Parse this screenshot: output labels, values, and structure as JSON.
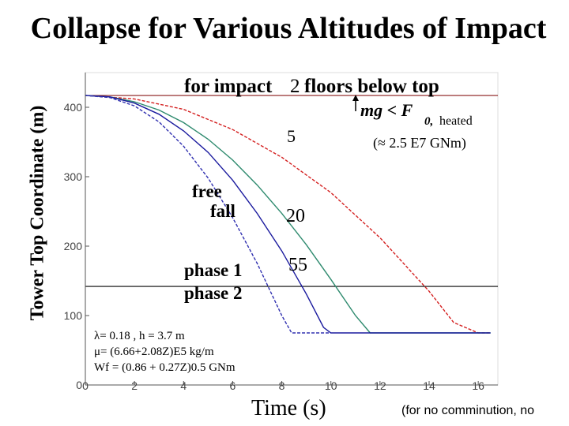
{
  "title": "Collapse for Various Altitudes of Impact",
  "chart_data": {
    "type": "line",
    "title": "Collapse for Various Altitudes of Impact",
    "xlabel": "Time (s)",
    "ylabel": "Tower Top Coordinate (m)",
    "xlim": [
      0,
      16.8
    ],
    "ylim": [
      0,
      450
    ],
    "xticks": [
      0,
      2,
      4,
      6,
      8,
      10,
      12,
      14,
      16
    ],
    "yticks": [
      0,
      100,
      200,
      300,
      400
    ],
    "grid": false,
    "series": [
      {
        "color": "#d42020",
        "style": "dashed",
        "x": [
          0,
          2,
          4,
          6,
          8,
          10,
          12,
          14,
          15,
          16,
          16.5
        ],
        "y": [
          417,
          412,
          397,
          368,
          328,
          277,
          212,
          135,
          90,
          75,
          75
        ]
      },
      {
        "color": "#2e8a6e",
        "style": "solid",
        "x": [
          0,
          1,
          2,
          3,
          4,
          5,
          6,
          7,
          8,
          9,
          10,
          11,
          11.6,
          12,
          16.5
        ],
        "y": [
          417,
          415,
          408,
          396,
          378,
          354,
          324,
          288,
          247,
          202,
          152,
          100,
          75,
          75,
          75
        ]
      },
      {
        "color": "#1a1a9e",
        "style": "solid",
        "x": [
          0,
          1,
          2,
          3,
          4,
          5,
          6,
          7,
          8,
          9,
          9.7,
          10,
          16.5
        ],
        "y": [
          417,
          415,
          406,
          390,
          366,
          335,
          295,
          247,
          193,
          131,
          83,
          75,
          75
        ]
      },
      {
        "color": "#3030b0",
        "style": "dashed",
        "x": [
          0,
          1,
          2,
          3,
          4,
          5,
          6,
          7,
          8,
          8.4,
          8.6,
          10
        ],
        "y": [
          417,
          414,
          402,
          379,
          344,
          298,
          241,
          175,
          100,
          75,
          75,
          75
        ]
      }
    ],
    "reference_lines": [
      {
        "y": 417,
        "color": "#8a1a1a"
      },
      {
        "y": 142,
        "color": "#000000"
      }
    ]
  },
  "annotations": {
    "impact_note": "for impact",
    "impact_floors": "2",
    "impact_rest": "floors below top",
    "condition_main": "mg < F",
    "condition_sub0": "0,",
    "condition_heated": "heated",
    "approx": "(≈ 2.5 E7 GNm)",
    "label_5": "5",
    "label_20": "20",
    "label_55": "55",
    "free": "free",
    "fall": "fall",
    "phase1": "phase 1",
    "phase2": "phase 2",
    "param1": "λ= 0.18 ,  h = 3.7 m",
    "param2": "μ= (6.66+2.08Z)E5 kg/m",
    "param3": "Wf = (0.86 + 0.27Z)0.5 GNm"
  },
  "footnote": "(for no comminution, no"
}
